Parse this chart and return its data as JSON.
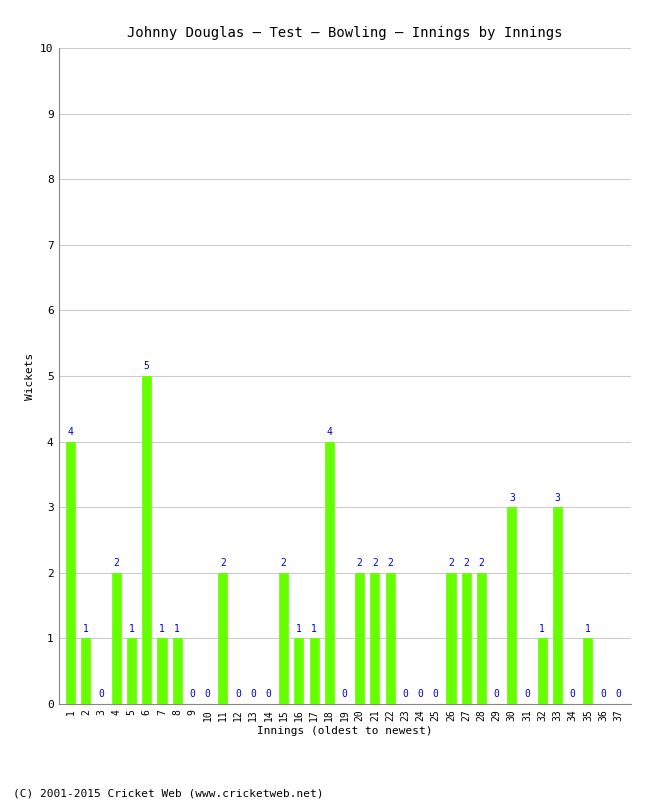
{
  "title": "Johnny Douglas – Test – Bowling – Innings by Innings",
  "xlabel": "Innings (oldest to newest)",
  "ylabel": "Wickets",
  "ylim": [
    0,
    10
  ],
  "yticks": [
    0,
    1,
    2,
    3,
    4,
    5,
    6,
    7,
    8,
    9,
    10
  ],
  "bar_color": "#66FF00",
  "bar_edge_color": "#66FF00",
  "label_color": "#0000CC",
  "background_color": "#FFFFFF",
  "grid_color": "#CCCCCC",
  "footer": "(C) 2001-2015 Cricket Web (www.cricketweb.net)",
  "innings": [
    1,
    2,
    3,
    4,
    5,
    6,
    7,
    8,
    9,
    10,
    11,
    12,
    13,
    14,
    15,
    16,
    17,
    18,
    19,
    20,
    21,
    22,
    23,
    24,
    25,
    26,
    27,
    28,
    29,
    30,
    31,
    32,
    33,
    34,
    35,
    36,
    37
  ],
  "wickets": [
    4,
    1,
    0,
    2,
    1,
    5,
    1,
    1,
    0,
    0,
    2,
    0,
    0,
    0,
    2,
    1,
    1,
    4,
    0,
    2,
    2,
    2,
    0,
    0,
    0,
    2,
    2,
    2,
    0,
    3,
    0,
    1,
    3,
    0,
    1,
    0,
    0
  ]
}
